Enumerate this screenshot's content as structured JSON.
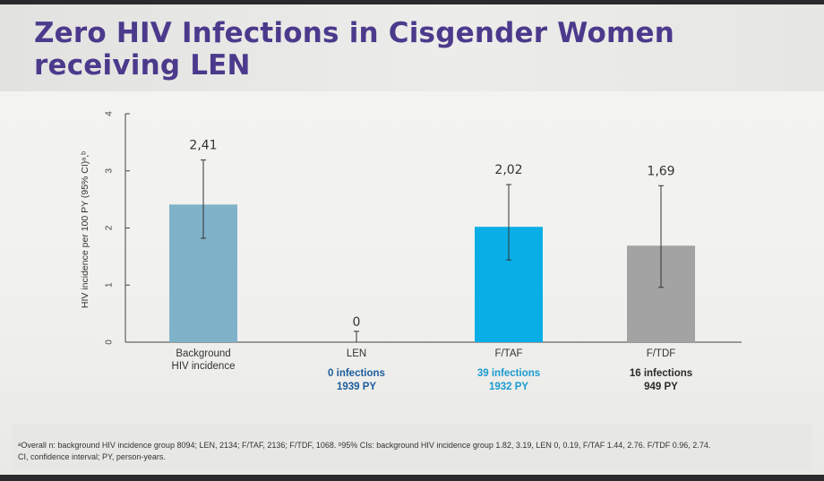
{
  "slide": {
    "title": "Zero HIV Infections in Cisgender Women\nreceiving LEN",
    "footnote_line1": "ᵃOverall n: background HIV incidence group 8094; LEN, 2134; F/TAF, 2136; F/TDF, 1068. ᵇ95% CIs: background HIV incidence group 1.82, 3.19, LEN 0, 0.19, F/TAF 1.44, 2.76. F/TDF 0.96, 2.74.",
    "footnote_line2": "CI, confidence interval; PY, person-years."
  },
  "chart_data": {
    "type": "bar",
    "ylabel": "HIV incidence per 100 PY (95% CI)ᵃ,ᵇ",
    "ylim": [
      0,
      4
    ],
    "yticks": [
      "0",
      "1",
      "2",
      "3",
      "4"
    ],
    "grid": false,
    "bars": [
      {
        "label_lines": [
          "Background",
          "HIV incidence"
        ],
        "value": 2.41,
        "value_label": "2,41",
        "ci": [
          1.82,
          3.19
        ],
        "color": "#7fb2c9",
        "info_lines": [],
        "info_color": "#1a1a1a"
      },
      {
        "label_lines": [
          "LEN"
        ],
        "value": 0,
        "value_label": "0",
        "ci": [
          0,
          0.19
        ],
        "color": "#2a6aa0",
        "info_lines": [
          "0 infections",
          "1939 PY"
        ],
        "info_color": "#1d5c9c"
      },
      {
        "label_lines": [
          "F/TAF"
        ],
        "value": 2.02,
        "value_label": "2,02",
        "ci": [
          1.44,
          2.76
        ],
        "color": "#0aaee6",
        "info_lines": [
          "39 infections",
          "1932 PY"
        ],
        "info_color": "#1a9bd0"
      },
      {
        "label_lines": [
          "F/TDF"
        ],
        "value": 1.69,
        "value_label": "1,69",
        "ci": [
          0.96,
          2.74
        ],
        "color": "#a3a3a3",
        "info_lines": [
          "16 infections",
          "949 PY"
        ],
        "info_color": "#2a2a2a"
      }
    ]
  }
}
